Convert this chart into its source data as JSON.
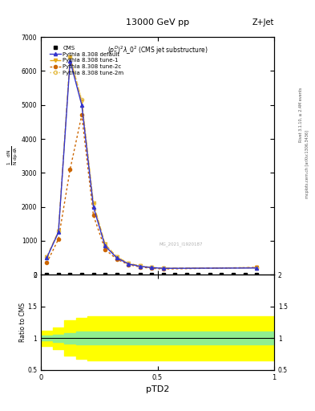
{
  "title_top": "13000 GeV pp",
  "title_right": "Z+Jet",
  "subtitle": "(p_{T}^{D})^{2}\\lambda\\_0^{2} (CMS jet substructure)",
  "ylabel_ratio": "Ratio to CMS",
  "xlabel": "pTD2",
  "right_label_top": "Rivet 3.1.10, ≥ 2.4M events",
  "right_label_bottom": "mcplots.cern.ch [arXiv:1306.3436]",
  "watermark": "MG_2021_I1920187",
  "xlim": [
    0,
    1.0
  ],
  "ylim_main_lo": 0,
  "ylim_main_hi": 7000,
  "ylim_ratio_lo": 0.5,
  "ylim_ratio_hi": 2.0,
  "yticks_main": [
    0,
    1000,
    2000,
    3000,
    4000,
    5000,
    6000,
    7000
  ],
  "ytick_labels_main": [
    "0",
    "1000",
    "2000",
    "3000",
    "4000",
    "5000",
    "6000",
    "7000"
  ],
  "yticks_ratio": [
    0.5,
    1.0,
    1.5,
    2.0
  ],
  "ytick_labels_ratio": [
    "0.5",
    "1",
    "1.5",
    "2"
  ],
  "xticks": [
    0,
    0.5,
    1.0
  ],
  "xtick_labels": [
    "0",
    "0.5",
    "1"
  ],
  "cms_x": [
    0.025,
    0.075,
    0.125,
    0.175,
    0.225,
    0.275,
    0.325,
    0.375,
    0.425,
    0.475,
    0.525,
    0.575,
    0.625,
    0.675,
    0.725,
    0.775,
    0.825,
    0.875,
    0.925
  ],
  "cms_y": [
    0,
    0,
    0,
    0,
    0,
    0,
    0,
    0,
    0,
    0,
    0,
    0,
    0,
    0,
    0,
    0,
    0,
    0,
    0
  ],
  "pythia_default_x": [
    0.025,
    0.075,
    0.125,
    0.175,
    0.225,
    0.275,
    0.325,
    0.375,
    0.425,
    0.475,
    0.525,
    0.925
  ],
  "pythia_default_y": [
    500,
    1250,
    6300,
    5000,
    2000,
    850,
    500,
    320,
    250,
    210,
    190,
    200
  ],
  "pythia_tune1_x": [
    0.025,
    0.075,
    0.125,
    0.175,
    0.225,
    0.275,
    0.325,
    0.375,
    0.425,
    0.475,
    0.525,
    0.925
  ],
  "pythia_tune1_y": [
    520,
    1280,
    6400,
    5100,
    2100,
    900,
    530,
    340,
    260,
    215,
    195,
    210
  ],
  "pythia_tune2c_x": [
    0.025,
    0.075,
    0.125,
    0.175,
    0.225,
    0.275,
    0.325,
    0.375,
    0.425,
    0.475,
    0.525,
    0.925
  ],
  "pythia_tune2c_y": [
    350,
    1050,
    3100,
    4700,
    1750,
    750,
    460,
    300,
    230,
    190,
    170,
    215
  ],
  "pythia_tune2m_x": [
    0.025,
    0.075,
    0.125,
    0.175,
    0.225,
    0.275,
    0.325,
    0.375,
    0.425,
    0.475,
    0.525,
    0.925
  ],
  "pythia_tune2m_y": [
    520,
    1280,
    6400,
    5150,
    2100,
    890,
    525,
    335,
    258,
    213,
    193,
    207
  ],
  "color_default": "#3333cc",
  "color_tune1": "#e6a817",
  "color_tune2c": "#cc6600",
  "color_tune2m": "#e6c050",
  "yellow_x": [
    0.0,
    0.05,
    0.1,
    0.15,
    0.2,
    0.25,
    1.0
  ],
  "yellow_lo": [
    0.88,
    0.83,
    0.72,
    0.68,
    0.65,
    0.65,
    0.65
  ],
  "yellow_hi": [
    1.12,
    1.17,
    1.28,
    1.32,
    1.35,
    1.35,
    1.35
  ],
  "green_x": [
    0.0,
    0.05,
    0.1,
    0.15,
    0.2,
    0.25,
    1.0
  ],
  "green_lo": [
    0.96,
    0.94,
    0.92,
    0.9,
    0.9,
    0.9,
    0.9
  ],
  "green_hi": [
    1.04,
    1.06,
    1.08,
    1.1,
    1.1,
    1.1,
    1.1
  ]
}
